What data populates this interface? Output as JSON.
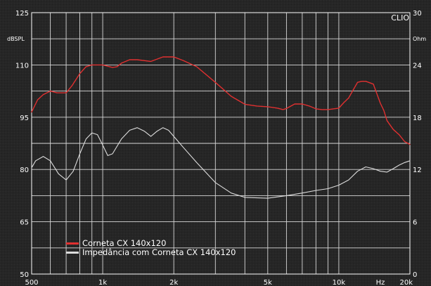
{
  "chart_data": {
    "type": "line",
    "brand": "CLIO",
    "x_scale": "log",
    "xlim": [
      500,
      20000
    ],
    "x_ticks": [
      {
        "value": 500,
        "label": "500"
      },
      {
        "value": 1000,
        "label": "1k"
      },
      {
        "value": 2000,
        "label": "2k"
      },
      {
        "value": 5000,
        "label": "5k"
      },
      {
        "value": 10000,
        "label": "10k"
      },
      {
        "value": 15000,
        "label": "Hz"
      },
      {
        "value": 20000,
        "label": "20k"
      }
    ],
    "y_left": {
      "unit": "dBSPL",
      "lim": [
        50,
        125
      ],
      "ticks": [
        {
          "value": 125,
          "label": "125"
        },
        {
          "value": 110,
          "label": "110"
        },
        {
          "value": 95,
          "label": "95"
        },
        {
          "value": 80,
          "label": "80"
        },
        {
          "value": 65,
          "label": "65"
        },
        {
          "value": 50,
          "label": "50"
        }
      ]
    },
    "y_right": {
      "unit": "Ohm",
      "lim": [
        0,
        30
      ],
      "ticks": [
        {
          "value": 30,
          "label": "30"
        },
        {
          "value": 24,
          "label": "24"
        },
        {
          "value": 18,
          "label": "18"
        },
        {
          "value": 12,
          "label": "12"
        },
        {
          "value": 6,
          "label": "6"
        },
        {
          "value": 0,
          "label": "0"
        }
      ]
    },
    "grid": true,
    "legend_position": "bottom-left",
    "series": [
      {
        "name": "Corneta CX 140x120",
        "axis": "left",
        "color": "#e03030",
        "x": [
          500,
          530,
          560,
          600,
          640,
          700,
          740,
          800,
          850,
          900,
          950,
          1000,
          1100,
          1150,
          1200,
          1300,
          1400,
          1600,
          1800,
          2000,
          2200,
          2500,
          3000,
          3500,
          4000,
          4500,
          5000,
          5500,
          5800,
          6000,
          6500,
          7000,
          7500,
          8000,
          8500,
          9000,
          10000,
          10500,
          11000,
          12000,
          12500,
          13000,
          14000,
          15000,
          15500,
          16000,
          17000,
          18000,
          19000,
          20000
        ],
        "y": [
          96.5,
          100,
          101.5,
          102.5,
          102,
          102,
          104,
          107.5,
          109.5,
          110,
          110,
          110,
          109.3,
          109.5,
          110.5,
          111.5,
          111.5,
          111,
          112.3,
          112.3,
          111.2,
          109.5,
          105,
          101,
          98.7,
          98.2,
          98,
          97.6,
          97.2,
          97.5,
          98.8,
          98.8,
          98.2,
          97.4,
          97.2,
          97.2,
          97.6,
          99.2,
          100.5,
          105,
          105.3,
          105.3,
          104.5,
          99,
          97,
          94,
          91.5,
          90,
          88,
          87.2
        ]
      },
      {
        "name": "Impedância com Corneta CX 140x120",
        "axis": "right",
        "color": "#dcdcdc",
        "x": [
          500,
          520,
          560,
          600,
          650,
          700,
          750,
          800,
          850,
          900,
          950,
          1000,
          1050,
          1100,
          1200,
          1300,
          1400,
          1500,
          1600,
          1700,
          1800,
          1900,
          2000,
          2200,
          2500,
          3000,
          3500,
          4000,
          5000,
          6000,
          7000,
          8000,
          9000,
          10000,
          11000,
          12000,
          13000,
          14000,
          15000,
          16000,
          17000,
          18000,
          19000,
          20000
        ],
        "y": [
          12.2,
          13,
          13.5,
          13,
          11.5,
          10.8,
          11.8,
          13.8,
          15.5,
          16.2,
          16,
          14.8,
          13.6,
          13.8,
          15.5,
          16.5,
          16.8,
          16.4,
          15.8,
          16.4,
          16.8,
          16.5,
          15.8,
          14.5,
          12.8,
          10.5,
          9.3,
          8.8,
          8.7,
          9.0,
          9.3,
          9.6,
          9.8,
          10.2,
          10.8,
          11.8,
          12.3,
          12.1,
          11.8,
          11.7,
          12.1,
          12.5,
          12.8,
          13.0
        ]
      }
    ]
  }
}
